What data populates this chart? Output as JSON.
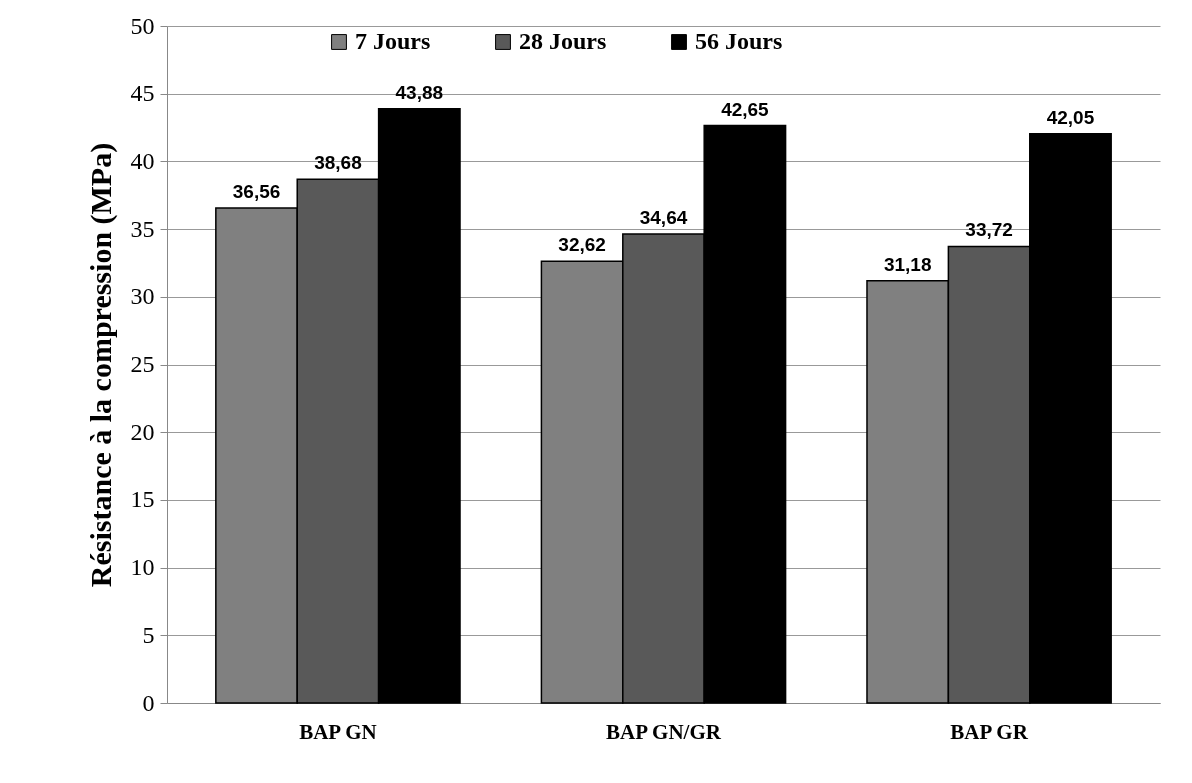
{
  "chart_data": {
    "type": "bar",
    "ylabel": "Résistance à la compression (MPa)",
    "categories": [
      "BAP GN",
      "BAP GN/GR",
      "BAP GR"
    ],
    "series": [
      {
        "name": "7 Jours",
        "color": "#808080",
        "values": [
          36.56,
          32.62,
          31.18
        ],
        "value_labels": [
          "36,56",
          "32,62",
          "31,18"
        ]
      },
      {
        "name": "28 Jours",
        "color": "#595959",
        "values": [
          38.68,
          34.64,
          33.72
        ],
        "value_labels": [
          "38,68",
          "34,64",
          "33,72"
        ]
      },
      {
        "name": "56 Jours",
        "color": "#000000",
        "values": [
          43.88,
          42.65,
          42.05
        ],
        "value_labels": [
          "43,88",
          "42,65",
          "42,05"
        ]
      }
    ],
    "ylim": [
      0,
      50
    ],
    "yticks": [
      0,
      5,
      10,
      15,
      20,
      25,
      30,
      35,
      40,
      45,
      50
    ],
    "grid": "y",
    "legend": "top"
  }
}
